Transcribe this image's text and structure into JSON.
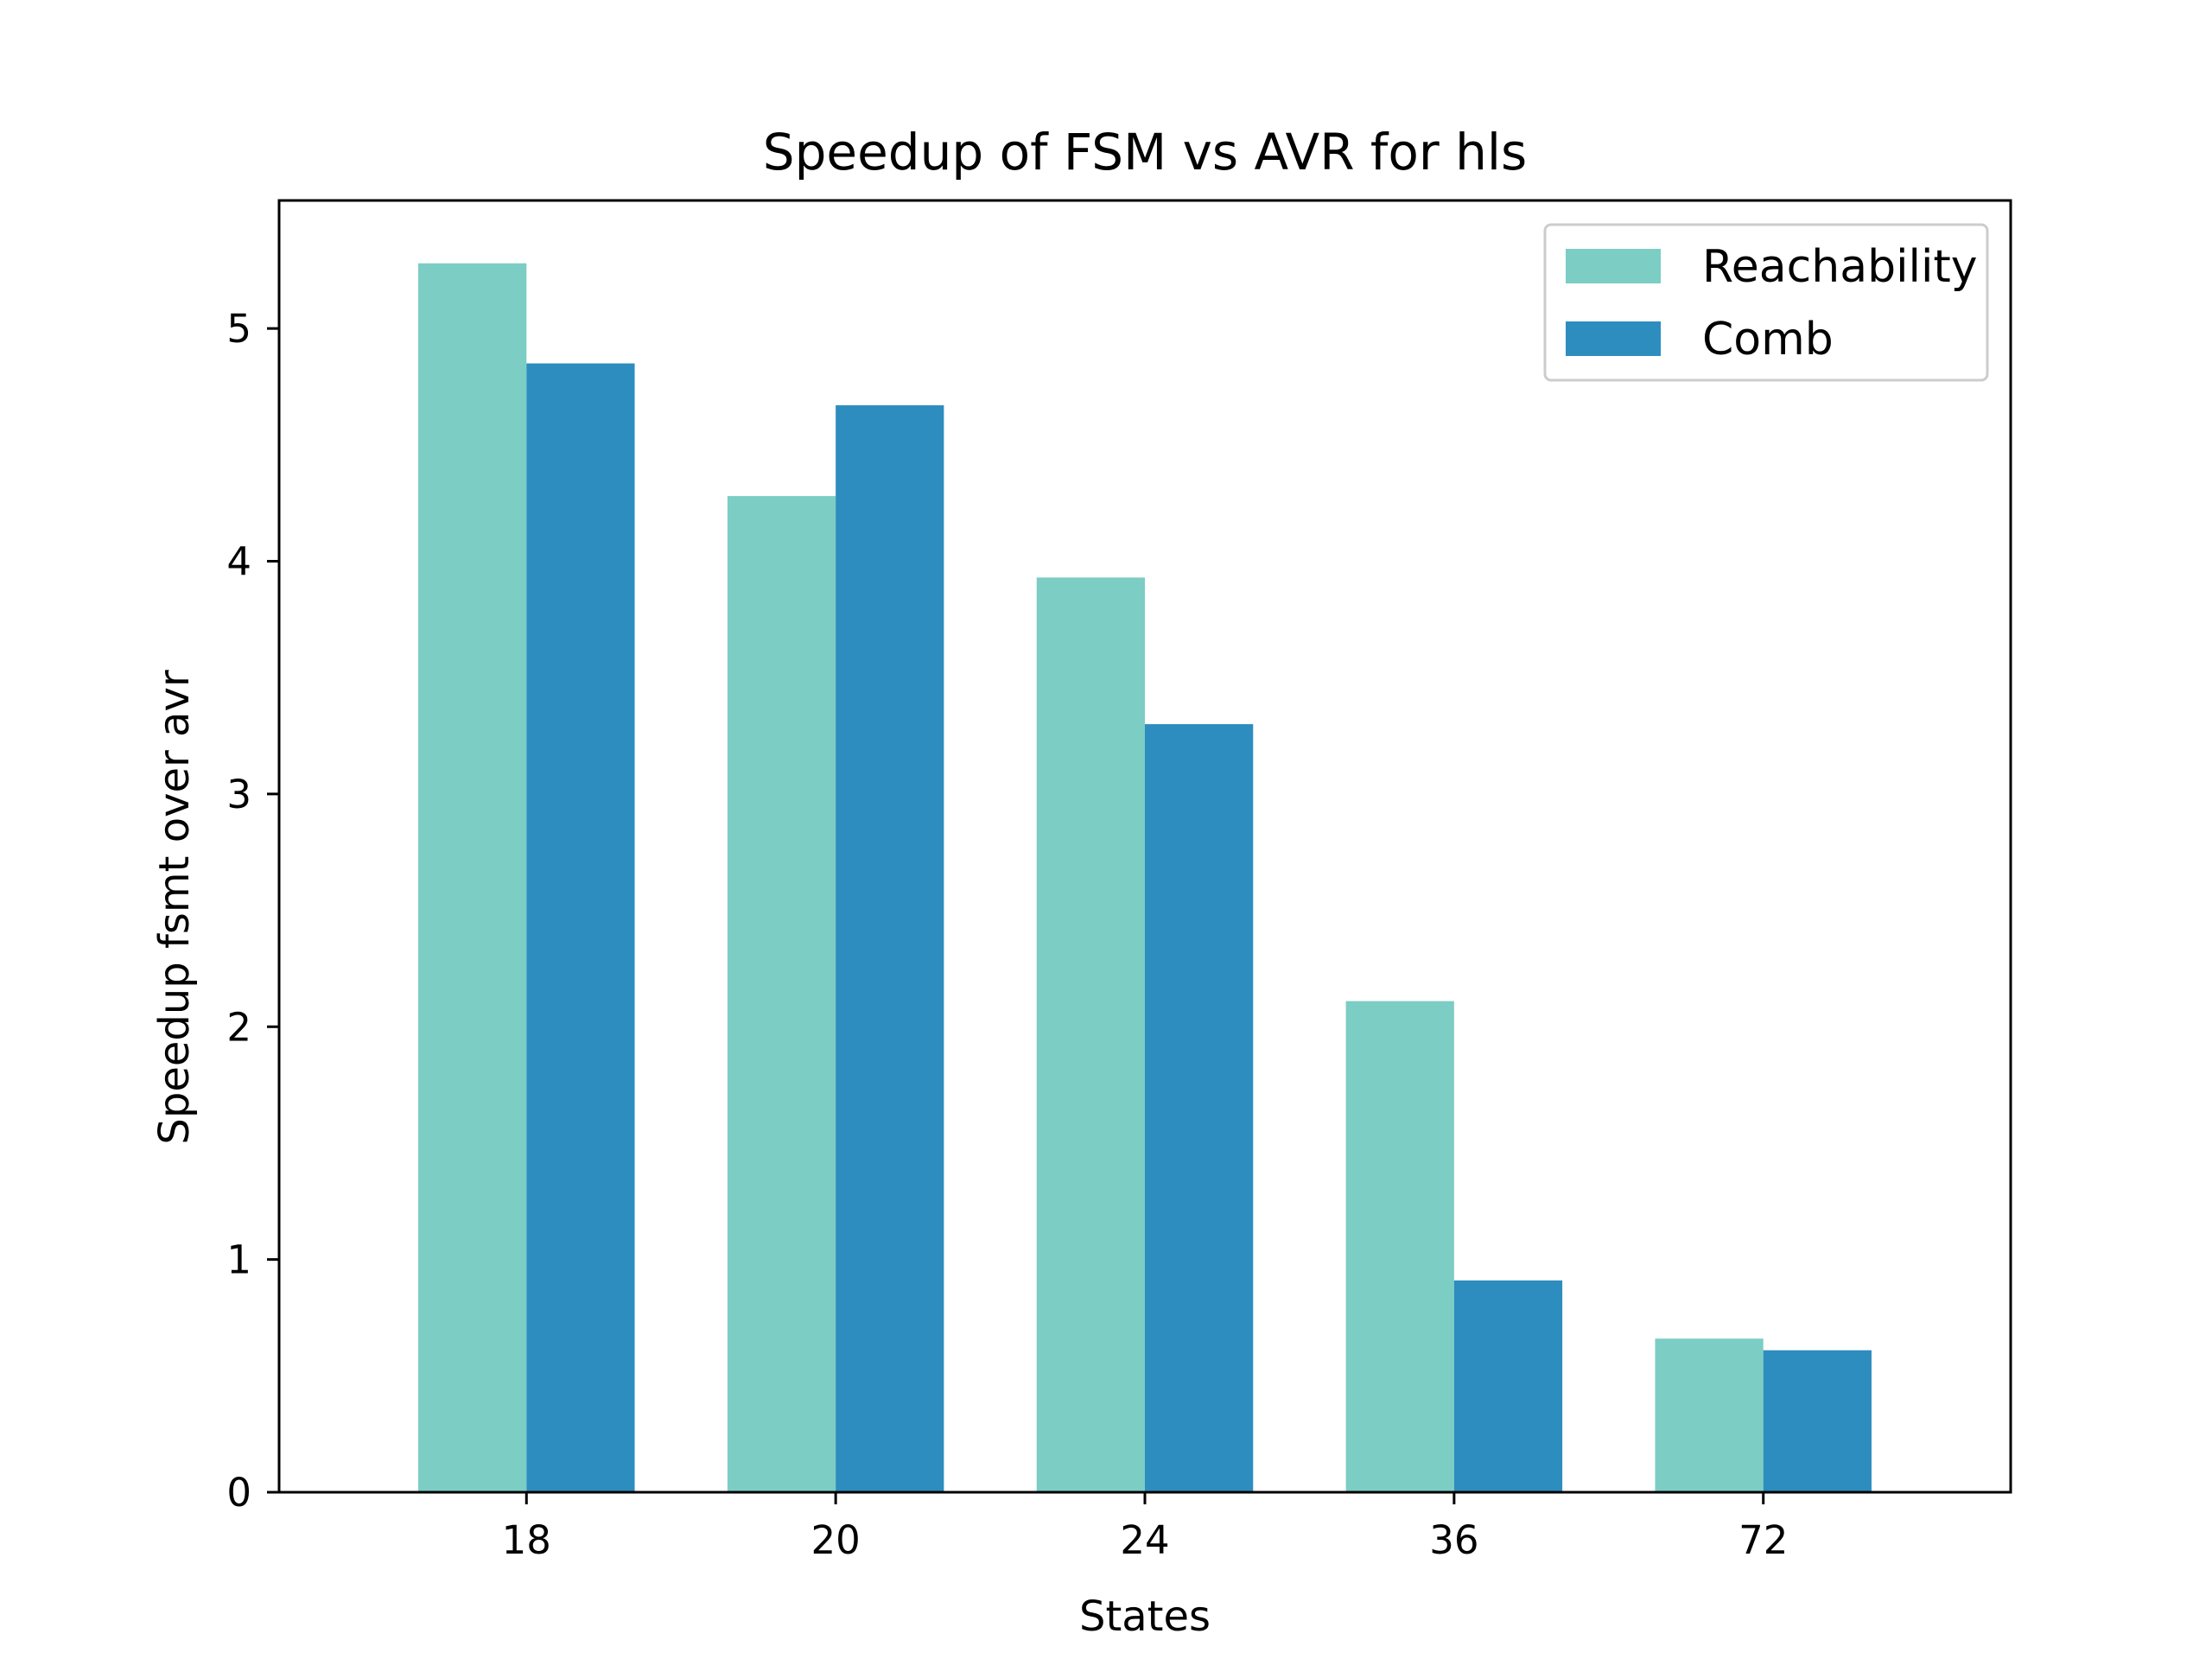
{
  "chart_data": {
    "type": "bar",
    "title": "Speedup of FSM vs AVR for hls",
    "xlabel": "States",
    "ylabel": "Speedup fsmt over avr",
    "categories": [
      "18",
      "20",
      "24",
      "36",
      "72"
    ],
    "series": [
      {
        "name": "Reachability",
        "color": "#7ccdc4",
        "values": [
          5.28,
          4.28,
          3.93,
          2.11,
          0.66
        ]
      },
      {
        "name": "Comb",
        "color": "#2d8dbf",
        "values": [
          4.85,
          4.67,
          3.3,
          0.91,
          0.61
        ]
      }
    ],
    "ylim": [
      0,
      5.55
    ],
    "yticks": [
      "0",
      "1",
      "2",
      "3",
      "4",
      "5"
    ],
    "grid": false,
    "legend": "top-right"
  }
}
